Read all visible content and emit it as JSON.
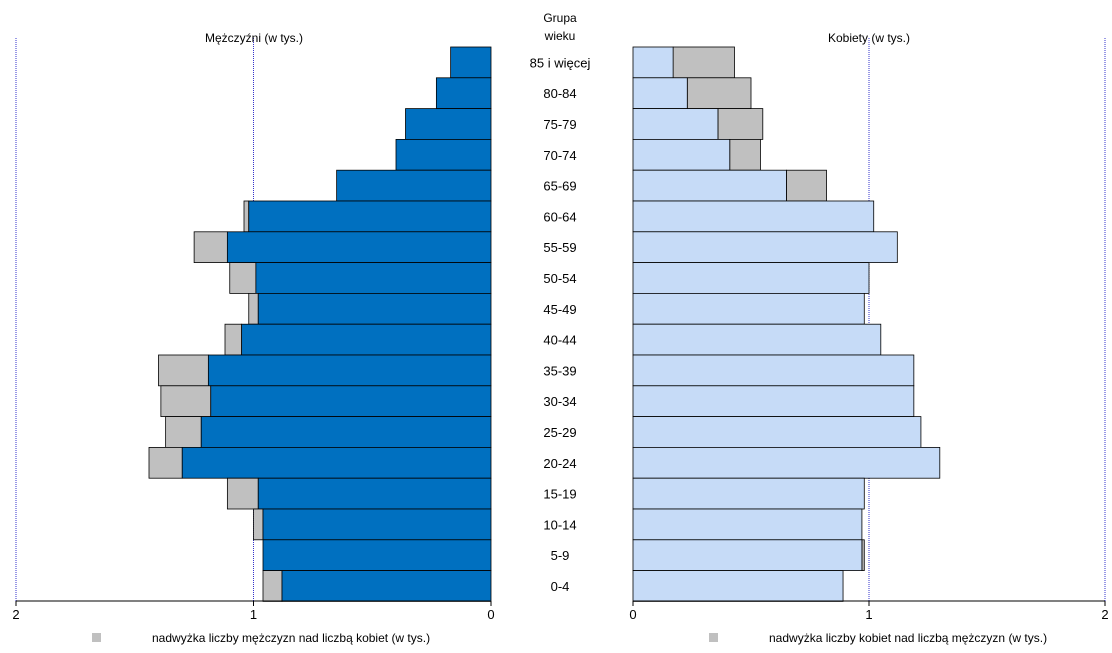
{
  "chart_data": {
    "type": "bar",
    "subtype": "population-pyramid",
    "age_header": [
      "Grupa",
      "wieku"
    ],
    "categories": [
      "85 i więcej",
      "80-84",
      "75-79",
      "70-74",
      "65-69",
      "60-64",
      "55-59",
      "50-54",
      "45-49",
      "40-44",
      "35-39",
      "30-34",
      "25-29",
      "20-24",
      "15-19",
      "10-14",
      "5-9",
      "0-4"
    ],
    "left": {
      "title": "Mężczyźni (w tys.)",
      "series": [
        {
          "values": [
            0.17,
            0.23,
            0.36,
            0.4,
            0.65,
            1.02,
            1.11,
            0.99,
            0.98,
            1.05,
            1.19,
            1.18,
            1.22,
            1.3,
            0.98,
            0.96,
            0.96,
            0.88
          ]
        },
        {
          "values": [
            0,
            0,
            0,
            0,
            0,
            0.02,
            0.14,
            0.11,
            0.04,
            0.07,
            0.21,
            0.21,
            0.15,
            0.14,
            0.13,
            0.04,
            0,
            0.08
          ]
        }
      ],
      "xlim": [
        0,
        2
      ],
      "ticks": [
        "2",
        "1",
        "0"
      ],
      "legend": "nadwyżka liczby mężczyzn nad liczbą kobiet (w tys.)"
    },
    "right": {
      "title": "Kobiety (w tys.)",
      "series": [
        {
          "values": [
            0.17,
            0.23,
            0.36,
            0.41,
            0.65,
            1.02,
            1.12,
            1.0,
            0.98,
            1.05,
            1.19,
            1.19,
            1.22,
            1.3,
            0.98,
            0.97,
            0.97,
            0.89
          ]
        },
        {
          "values": [
            0.26,
            0.27,
            0.19,
            0.13,
            0.17,
            0,
            0,
            0,
            0,
            0,
            0,
            0,
            0,
            0,
            0,
            0,
            0.01,
            0
          ]
        }
      ],
      "xlim": [
        0,
        2
      ],
      "ticks": [
        "0",
        "1",
        "2"
      ],
      "legend": "nadwyżka liczby kobiet nad liczbą mężczyzn (w tys.)"
    },
    "grid": true,
    "colors": {
      "male": "#0070c0",
      "female": "#c6dbf7",
      "surplus": "#c0c0c0",
      "grid": "#3333cc"
    }
  }
}
